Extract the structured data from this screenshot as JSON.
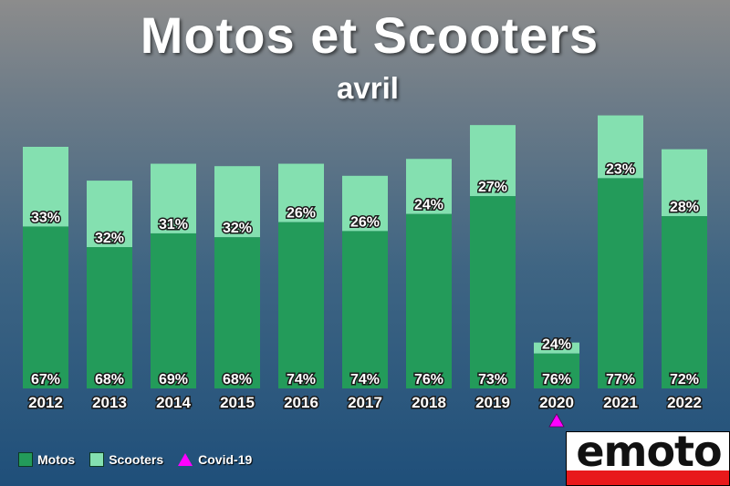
{
  "title": "Motos et Scooters",
  "subtitle": "avril",
  "colors": {
    "motos": "#239b5a",
    "scooters": "#84e0b0",
    "covid": "#ff00ff"
  },
  "legend": [
    {
      "label": "Motos",
      "color": "#239b5a",
      "shape": "square"
    },
    {
      "label": "Scooters",
      "color": "#84e0b0",
      "shape": "square"
    },
    {
      "label": "Covid-19",
      "color": "#ff00ff",
      "shape": "triangle"
    }
  ],
  "logo": {
    "text": "emoto"
  },
  "chart_data": {
    "type": "bar",
    "stacked": true,
    "categories": [
      "2012",
      "2013",
      "2014",
      "2015",
      "2016",
      "2017",
      "2018",
      "2019",
      "2020",
      "2021",
      "2022"
    ],
    "totals_relative": [
      100,
      86,
      93,
      92,
      93,
      88,
      95,
      109,
      19,
      113,
      99
    ],
    "series": [
      {
        "name": "Motos",
        "percent_labels": [
          "67%",
          "68%",
          "69%",
          "68%",
          "74%",
          "74%",
          "76%",
          "73%",
          "76%",
          "77%",
          "72%"
        ]
      },
      {
        "name": "Scooters",
        "percent_labels": [
          "33%",
          "32%",
          "31%",
          "32%",
          "26%",
          "26%",
          "24%",
          "27%",
          "24%",
          "23%",
          "28%"
        ]
      }
    ],
    "annotations": [
      {
        "category": "2020",
        "marker": "triangle",
        "label": "Covid-19"
      }
    ],
    "legend_position": "bottom-left",
    "grid": false
  }
}
